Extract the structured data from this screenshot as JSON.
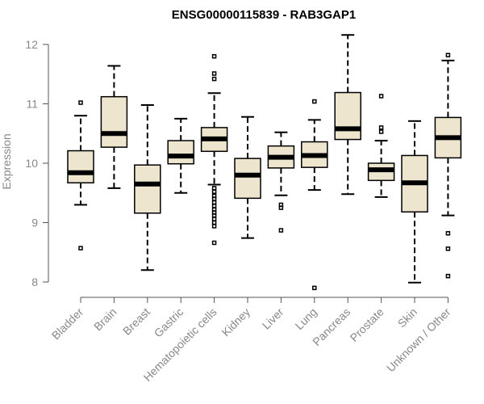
{
  "chart_data": {
    "type": "boxplot",
    "title": "ENSG00000115839 - RAB3GAP1",
    "xlabel": "",
    "ylabel": "Expression",
    "ylim": [
      8,
      12
    ],
    "yticks": [
      8,
      9,
      10,
      11,
      12
    ],
    "categories": [
      "Bladder",
      "Brain",
      "Breast",
      "Gastric",
      "Hematopoietic cells",
      "Kidney",
      "Liver",
      "Lung",
      "Pancreas",
      "Prostate",
      "Skin",
      "Unknown / Other"
    ],
    "boxes": [
      {
        "category": "Bladder",
        "whisker_low": 9.3,
        "q1": 9.67,
        "median": 9.84,
        "q3": 10.21,
        "whisker_high": 10.8,
        "outliers": [
          11.02,
          8.57
        ]
      },
      {
        "category": "Brain",
        "whisker_low": 9.58,
        "q1": 10.27,
        "median": 10.5,
        "q3": 11.12,
        "whisker_high": 11.64,
        "outliers": []
      },
      {
        "category": "Breast",
        "whisker_low": 8.2,
        "q1": 9.16,
        "median": 9.65,
        "q3": 9.97,
        "whisker_high": 10.98,
        "outliers": []
      },
      {
        "category": "Gastric",
        "whisker_low": 9.5,
        "q1": 9.99,
        "median": 10.12,
        "q3": 10.38,
        "whisker_high": 10.75,
        "outliers": []
      },
      {
        "category": "Hematopoietic cells",
        "whisker_low": 9.64,
        "q1": 10.2,
        "median": 10.41,
        "q3": 10.6,
        "whisker_high": 11.18,
        "outliers": [
          11.8,
          11.51,
          11.42,
          9.58,
          9.52,
          9.45,
          9.4,
          9.34,
          9.28,
          9.22,
          9.17,
          9.12,
          9.06,
          9.0,
          8.94,
          8.66
        ]
      },
      {
        "category": "Kidney",
        "whisker_low": 8.74,
        "q1": 9.41,
        "median": 9.8,
        "q3": 10.08,
        "whisker_high": 10.78,
        "outliers": []
      },
      {
        "category": "Liver",
        "whisker_low": 9.46,
        "q1": 9.92,
        "median": 10.1,
        "q3": 10.29,
        "whisker_high": 10.52,
        "outliers": [
          9.3,
          9.25,
          8.87
        ]
      },
      {
        "category": "Lung",
        "whisker_low": 9.55,
        "q1": 9.93,
        "median": 10.13,
        "q3": 10.36,
        "whisker_high": 10.73,
        "outliers": [
          11.04,
          7.9
        ]
      },
      {
        "category": "Pancreas",
        "whisker_low": 9.48,
        "q1": 10.4,
        "median": 10.58,
        "q3": 11.19,
        "whisker_high": 12.16,
        "outliers": []
      },
      {
        "category": "Prostate",
        "whisker_low": 9.43,
        "q1": 9.71,
        "median": 9.89,
        "q3": 10.0,
        "whisker_high": 10.38,
        "outliers": [
          11.13,
          10.6,
          10.53
        ]
      },
      {
        "category": "Skin",
        "whisker_low": 7.99,
        "q1": 9.18,
        "median": 9.67,
        "q3": 10.13,
        "whisker_high": 10.71,
        "outliers": []
      },
      {
        "category": "Unknown / Other",
        "whisker_low": 9.12,
        "q1": 10.09,
        "median": 10.43,
        "q3": 10.77,
        "whisker_high": 11.73,
        "outliers": [
          11.82,
          8.82,
          8.56,
          8.1
        ]
      }
    ],
    "colors": {
      "box_fill": "#ede5cd",
      "line": "#000000",
      "axis_text": "#888888"
    }
  }
}
